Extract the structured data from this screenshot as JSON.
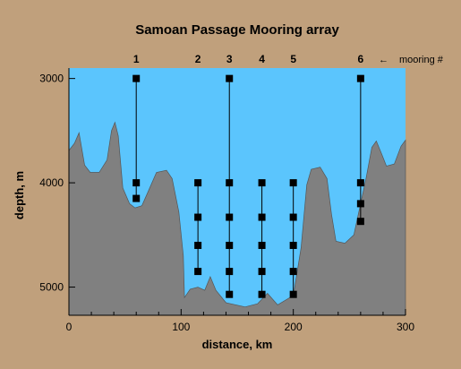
{
  "chart_data": {
    "type": "scatter",
    "title": "Samoan Passage Mooring array",
    "xlabel": "distance, km",
    "ylabel": "depth, m",
    "xlim": [
      0,
      300
    ],
    "ylim": [
      5270,
      2900
    ],
    "y_inverted": true,
    "x_ticks": [
      0,
      100,
      200,
      300
    ],
    "y_ticks": [
      3000,
      4000,
      5000
    ],
    "colors": {
      "water": "#5bc5fd",
      "seafloor": "#808080",
      "background": "#c0a07c",
      "mooring": "#000000"
    },
    "mooring_legend": "mooring #",
    "moorings": [
      {
        "id": "1",
        "x": 60,
        "depths": [
          3000,
          4000,
          4150
        ]
      },
      {
        "id": "2",
        "x": 115,
        "depths": [
          4000,
          4330,
          4600,
          4850
        ]
      },
      {
        "id": "3",
        "x": 143,
        "depths": [
          3000,
          4000,
          4330,
          4600,
          4850,
          5070
        ]
      },
      {
        "id": "4",
        "x": 172,
        "depths": [
          4000,
          4330,
          4600,
          4850,
          5070
        ]
      },
      {
        "id": "5",
        "x": 200,
        "depths": [
          4000,
          4330,
          4600,
          4850,
          5070
        ]
      },
      {
        "id": "6",
        "x": 260,
        "depths": [
          3000,
          4000,
          4200,
          4370
        ]
      }
    ],
    "bathymetry": [
      [
        0,
        3690
      ],
      [
        5,
        3620
      ],
      [
        9,
        3520
      ],
      [
        14,
        3830
      ],
      [
        19,
        3900
      ],
      [
        27,
        3900
      ],
      [
        34,
        3780
      ],
      [
        38,
        3500
      ],
      [
        41,
        3420
      ],
      [
        44,
        3550
      ],
      [
        48,
        4050
      ],
      [
        54,
        4200
      ],
      [
        59,
        4240
      ],
      [
        65,
        4220
      ],
      [
        70,
        4100
      ],
      [
        78,
        3900
      ],
      [
        87,
        3880
      ],
      [
        92,
        3960
      ],
      [
        98,
        4280
      ],
      [
        102,
        4700
      ],
      [
        103,
        5100
      ],
      [
        108,
        5020
      ],
      [
        115,
        5000
      ],
      [
        121,
        5030
      ],
      [
        126,
        4900
      ],
      [
        131,
        5030
      ],
      [
        140,
        5150
      ],
      [
        157,
        5190
      ],
      [
        168,
        5160
      ],
      [
        177,
        5060
      ],
      [
        186,
        5170
      ],
      [
        200,
        5080
      ],
      [
        207,
        4620
      ],
      [
        212,
        4020
      ],
      [
        216,
        3870
      ],
      [
        224,
        3850
      ],
      [
        230,
        3960
      ],
      [
        234,
        4300
      ],
      [
        238,
        4560
      ],
      [
        246,
        4580
      ],
      [
        254,
        4500
      ],
      [
        265,
        3950
      ],
      [
        270,
        3660
      ],
      [
        274,
        3600
      ],
      [
        279,
        3730
      ],
      [
        283,
        3840
      ],
      [
        290,
        3820
      ],
      [
        296,
        3650
      ],
      [
        300,
        3590
      ]
    ]
  }
}
